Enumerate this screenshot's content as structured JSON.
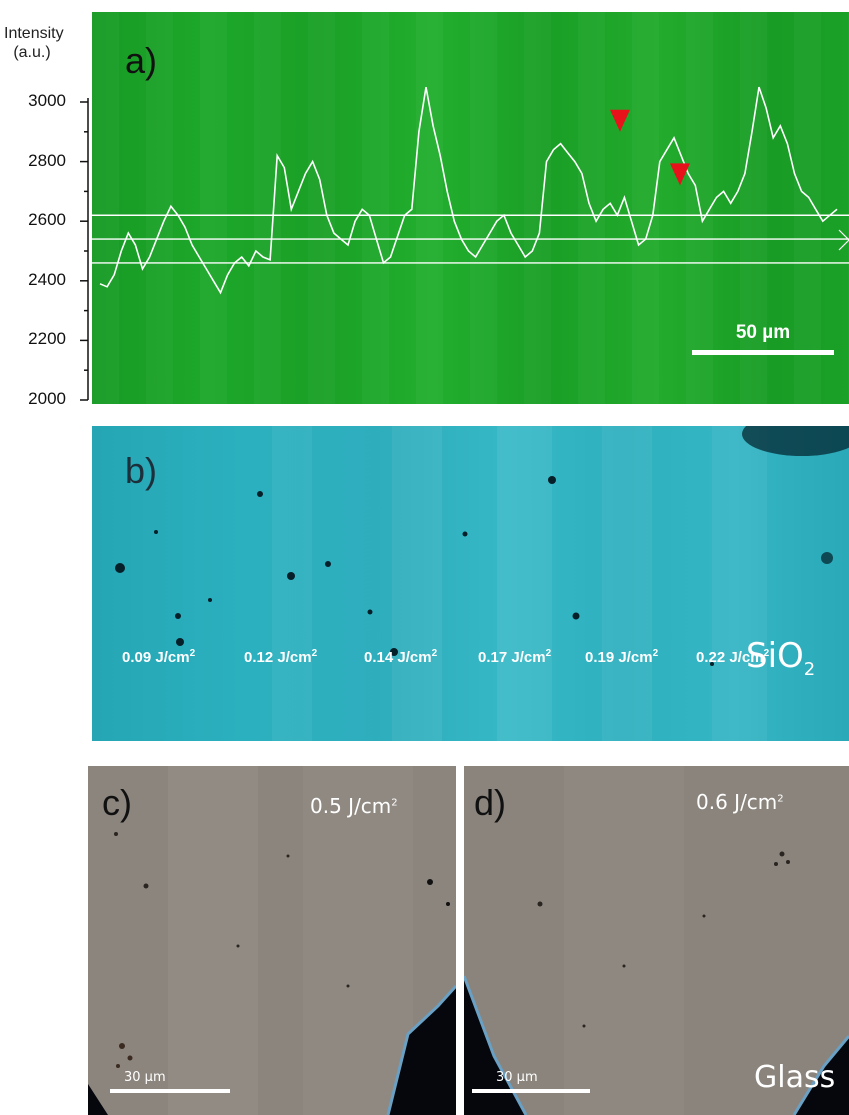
{
  "panel_a": {
    "letter": "a)",
    "axis_title_line1": "Intensity",
    "axis_title_line2": "(a.u.)",
    "y_ticks": [
      "3000",
      "2800",
      "2600",
      "2400",
      "2200",
      "2000"
    ],
    "scale_bar_label": "50 µm",
    "colors": {
      "background": "#1aa127",
      "trace": "#ffffff",
      "marker": "#e8121b"
    }
  },
  "panel_b": {
    "letter": "b)",
    "fluences": [
      {
        "value": "0.09 J/cm",
        "exp": "2"
      },
      {
        "value": "0.12 J/cm",
        "exp": "2"
      },
      {
        "value": "0.14 J/cm",
        "exp": "2"
      },
      {
        "value": "0.17 J/cm",
        "exp": "2"
      },
      {
        "value": "0.19 J/cm",
        "exp": "2"
      },
      {
        "value": "0.22 J/cm",
        "exp": "2"
      }
    ],
    "material": "SiO",
    "material_sub": "2",
    "colors": {
      "background": "#2eb0bf"
    }
  },
  "panel_c": {
    "letter": "c)",
    "fluence": "0.5 J/cm",
    "fluence_exp": "2",
    "scale_bar_label": "30 µm"
  },
  "panel_d": {
    "letter": "d)",
    "fluence": "0.6 J/cm",
    "fluence_exp": "2",
    "scale_bar_label": "30 µm",
    "material": "Glass"
  },
  "chart_data": {
    "type": "line",
    "title": "",
    "xlabel": "",
    "ylabel": "Intensity (a.u.)",
    "ylim": [
      2000,
      3100
    ],
    "y_ticks": [
      2000,
      2200,
      2400,
      2600,
      2800,
      3000
    ],
    "reference_lines": [
      2460,
      2540,
      2620
    ],
    "series": [
      {
        "values": [
          2390,
          2380,
          2420,
          2500,
          2560,
          2520,
          2440,
          2480,
          2540,
          2600,
          2650,
          2620,
          2580,
          2520,
          2480,
          2440,
          2400,
          2360,
          2420,
          2460,
          2480,
          2450,
          2500,
          2480,
          2470,
          2820,
          2780,
          2640,
          2700,
          2760,
          2800,
          2740,
          2620,
          2560,
          2540,
          2520,
          2600,
          2640,
          2620,
          2540,
          2460,
          2480,
          2550,
          2620,
          2640,
          2900,
          3050,
          2920,
          2820,
          2700,
          2600,
          2540,
          2500,
          2480,
          2520,
          2560,
          2600,
          2620,
          2560,
          2520,
          2480,
          2500,
          2560,
          2800,
          2840,
          2860,
          2830,
          2800,
          2760,
          2660,
          2600,
          2640,
          2660,
          2620,
          2680,
          2600,
          2520,
          2540,
          2620,
          2800,
          2840,
          2880,
          2820,
          2760,
          2720,
          2600,
          2640,
          2680,
          2700,
          2660,
          2700,
          2760,
          2900,
          3050,
          2980,
          2880,
          2920,
          2860,
          2760,
          2700,
          2680,
          2640,
          2600,
          2620,
          2640
        ]
      }
    ],
    "markers": [
      2880,
      2700
    ]
  }
}
